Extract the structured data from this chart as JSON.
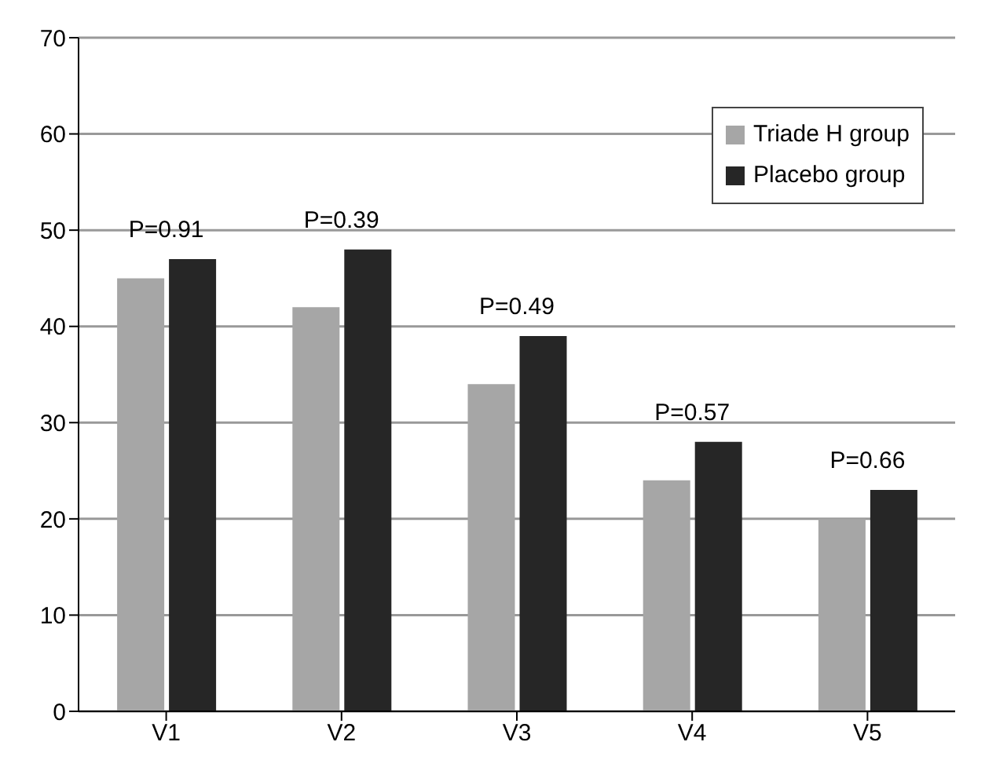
{
  "chart_data": {
    "type": "bar",
    "categories": [
      "V1",
      "V2",
      "V3",
      "V4",
      "V5"
    ],
    "series": [
      {
        "name": "Triade H group",
        "color": "#a6a6a6",
        "values": [
          45,
          42,
          34,
          24,
          20
        ]
      },
      {
        "name": "Placebo group",
        "color": "#262626",
        "values": [
          47,
          48,
          39,
          28,
          23
        ]
      }
    ],
    "ylim": [
      0,
      70
    ],
    "yticks": [
      0,
      10,
      20,
      30,
      40,
      50,
      60,
      70
    ],
    "grid": "y",
    "legend": "top right",
    "annotations": [
      "P=0.91",
      "P=0.39",
      "P=0.49",
      "P=0.57",
      "P=0.66"
    ]
  }
}
